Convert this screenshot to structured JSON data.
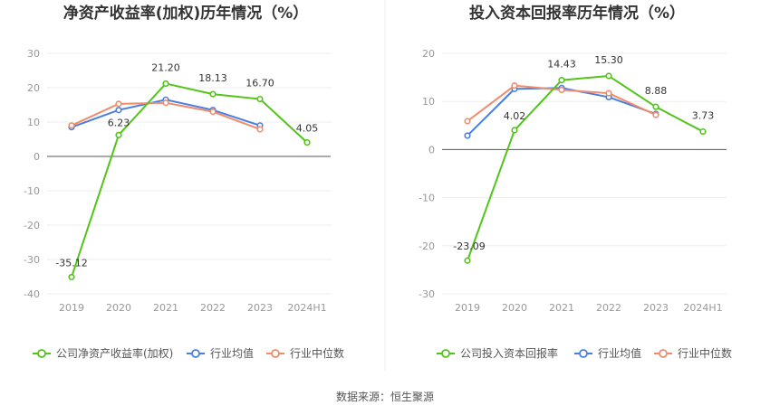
{
  "chart_data": [
    {
      "type": "line",
      "title": "净资产收益率(加权)历年情况（%）",
      "categories": [
        "2019",
        "2020",
        "2021",
        "2022",
        "2023",
        "2024H1"
      ],
      "ylim": [
        -40,
        30
      ],
      "yticks": [
        30,
        20,
        10,
        0,
        -10,
        -20,
        -30,
        -40
      ],
      "grid": true,
      "legend_position": "bottom",
      "series": [
        {
          "name": "公司净资产收益率(加权)",
          "color": "#52c41a",
          "values": [
            -35.12,
            6.23,
            21.2,
            18.13,
            16.7,
            4.05
          ],
          "labels": [
            "-35.12",
            "6.23",
            "21.20",
            "18.13",
            "16.70",
            "4.05"
          ]
        },
        {
          "name": "行业均值",
          "color": "#4a7fe0",
          "values": [
            8.5,
            13.5,
            16.5,
            13.5,
            9.0,
            null
          ]
        },
        {
          "name": "行业中位数",
          "color": "#f08c6c",
          "values": [
            9.0,
            15.3,
            15.6,
            13.0,
            7.9,
            null
          ]
        }
      ]
    },
    {
      "type": "line",
      "title": "投入资本回报率历年情况（%）",
      "categories": [
        "2019",
        "2020",
        "2021",
        "2022",
        "2023",
        "2024H1"
      ],
      "ylim": [
        -30,
        20
      ],
      "yticks": [
        20,
        10,
        0,
        -10,
        -20,
        -30
      ],
      "grid": true,
      "legend_position": "bottom",
      "series": [
        {
          "name": "公司投入资本回报率",
          "color": "#52c41a",
          "values": [
            -23.09,
            4.02,
            14.43,
            15.3,
            8.88,
            3.73
          ],
          "labels": [
            "-23.09",
            "4.02",
            "14.43",
            "15.30",
            "8.88",
            "3.73"
          ]
        },
        {
          "name": "行业均值",
          "color": "#4a7fe0",
          "values": [
            2.9,
            12.6,
            12.8,
            10.9,
            7.4,
            null
          ]
        },
        {
          "name": "行业中位数",
          "color": "#f08c6c",
          "values": [
            5.9,
            13.3,
            12.4,
            11.7,
            7.2,
            null
          ]
        }
      ]
    }
  ],
  "source_text": "数据来源：恒生聚源"
}
